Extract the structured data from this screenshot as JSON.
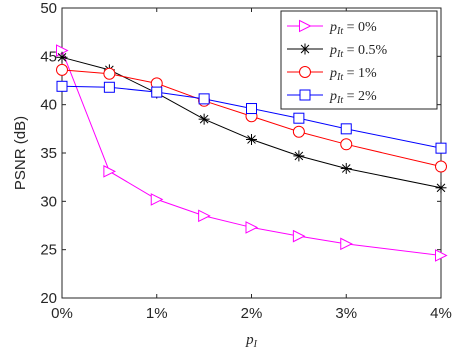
{
  "chart_data": {
    "type": "line",
    "ylabel": "PSNR (dB)",
    "xlabel": "p_I",
    "xlabel_main": "p",
    "xlabel_sub": "I",
    "x": [
      0,
      0.5,
      1,
      1.5,
      2,
      2.5,
      3,
      4
    ],
    "xlim": [
      0,
      4
    ],
    "ylim": [
      20,
      50
    ],
    "x_ticks": [
      0,
      1,
      2,
      3,
      4
    ],
    "x_tick_labels": [
      "0%",
      "1%",
      "2%",
      "3%",
      "4%"
    ],
    "y_ticks": [
      20,
      25,
      30,
      35,
      40,
      45,
      50
    ],
    "y_tick_labels": [
      "20",
      "25",
      "30",
      "35",
      "40",
      "45",
      "50"
    ],
    "grid": false,
    "legend_position": "top-right",
    "series": [
      {
        "name": "p_It = 0%",
        "label_sub": "It",
        "label_val": " = 0%",
        "color": "#ff00ff",
        "marker": "triangle-right",
        "values": [
          45.6,
          33.1,
          30.2,
          28.5,
          27.3,
          26.4,
          25.6,
          24.4
        ]
      },
      {
        "name": "p_It = 0.5%",
        "label_sub": "It",
        "label_val": " = 0.5%",
        "color": "#000000",
        "marker": "asterisk",
        "values": [
          44.9,
          43.6,
          41.2,
          38.5,
          36.4,
          34.7,
          33.4,
          31.4
        ]
      },
      {
        "name": "p_It = 1%",
        "label_sub": "It",
        "label_val": " = 1%",
        "color": "#ff0000",
        "marker": "circle",
        "values": [
          43.6,
          43.2,
          42.2,
          40.4,
          38.8,
          37.2,
          35.9,
          33.6
        ]
      },
      {
        "name": "p_It = 2%",
        "label_sub": "It",
        "label_val": " = 2%",
        "color": "#0000ff",
        "marker": "square",
        "values": [
          41.9,
          41.8,
          41.3,
          40.6,
          39.6,
          38.6,
          37.5,
          35.5
        ]
      }
    ]
  }
}
